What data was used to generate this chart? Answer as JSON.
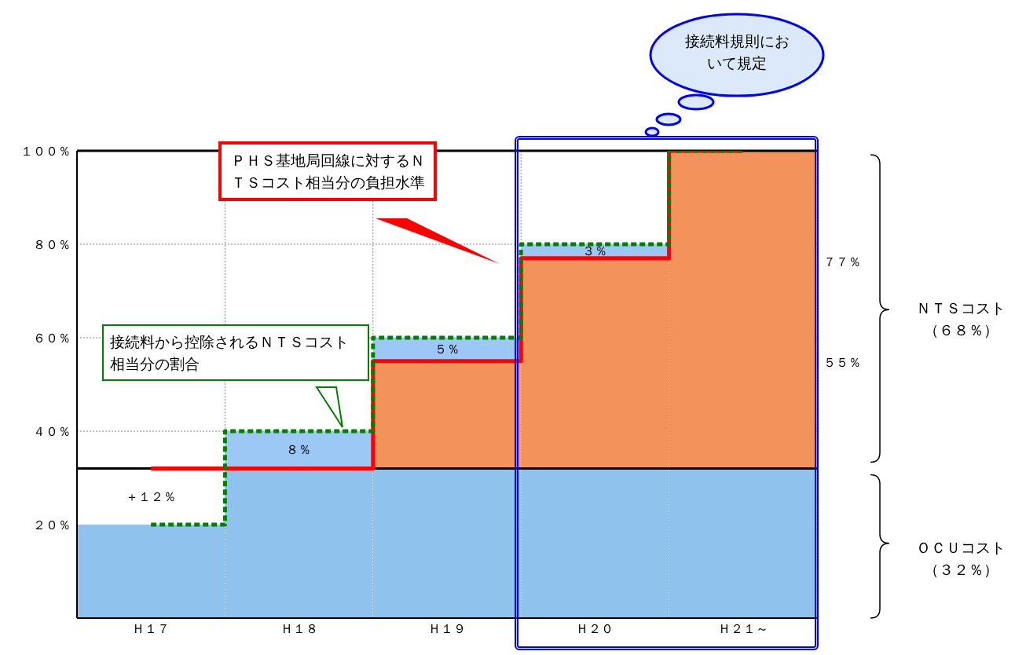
{
  "chart_data": {
    "type": "bar",
    "stacked": true,
    "categories": [
      "Ｈ１７",
      "Ｈ１８",
      "Ｈ１９",
      "Ｈ２０",
      "Ｈ２１～"
    ],
    "series": [
      {
        "color": "#8fc3ee",
        "values": [
          20,
          32,
          32,
          32,
          32
        ]
      },
      {
        "color": "#ffffff",
        "values": [
          12,
          null,
          null,
          null,
          null
        ],
        "value_labels": [
          "＋１２％",
          null,
          null,
          null,
          null
        ]
      },
      {
        "color": "#f3925a",
        "values": [
          null,
          null,
          23,
          45,
          68
        ]
      },
      {
        "color": "#9cc8f5",
        "values": [
          null,
          8,
          5,
          3,
          null
        ],
        "value_labels": [
          null,
          "８％",
          "５％",
          "３％",
          null
        ]
      },
      {
        "type": "step",
        "color": "#ff0000",
        "values": [
          32,
          32,
          55,
          77,
          100
        ],
        "line_style": "solid"
      },
      {
        "type": "step",
        "color": "#008000",
        "values": [
          20,
          40,
          60,
          80,
          100
        ],
        "line_style": "dotted"
      }
    ],
    "ylim": [
      0,
      100
    ],
    "yticks": [
      {
        "value": 0,
        "label": null
      },
      {
        "value": 20,
        "label": "２０％"
      },
      {
        "value": 40,
        "label": "４０％"
      },
      {
        "value": 60,
        "label": "６０％"
      },
      {
        "value": 80,
        "label": "８０％"
      },
      {
        "value": 100,
        "label": "１００％"
      }
    ],
    "grid": true,
    "legend": false,
    "ref_lines": [
      {
        "axis": "y",
        "value": 32,
        "color": "#000000"
      },
      {
        "axis": "y",
        "value": 100,
        "color": "#000000"
      }
    ],
    "annotations": [
      "ＰＨＳ基地局回線に対するＮＴＳコスト相当分の負担水準",
      "接続料から控除されるＮＴＳコスト相当分の割合",
      "接続料規則において規定",
      "ＮＴＳコスト（６８％）",
      "ＯＣＵコスト（３２％）",
      "７７％",
      "５５％"
    ]
  }
}
